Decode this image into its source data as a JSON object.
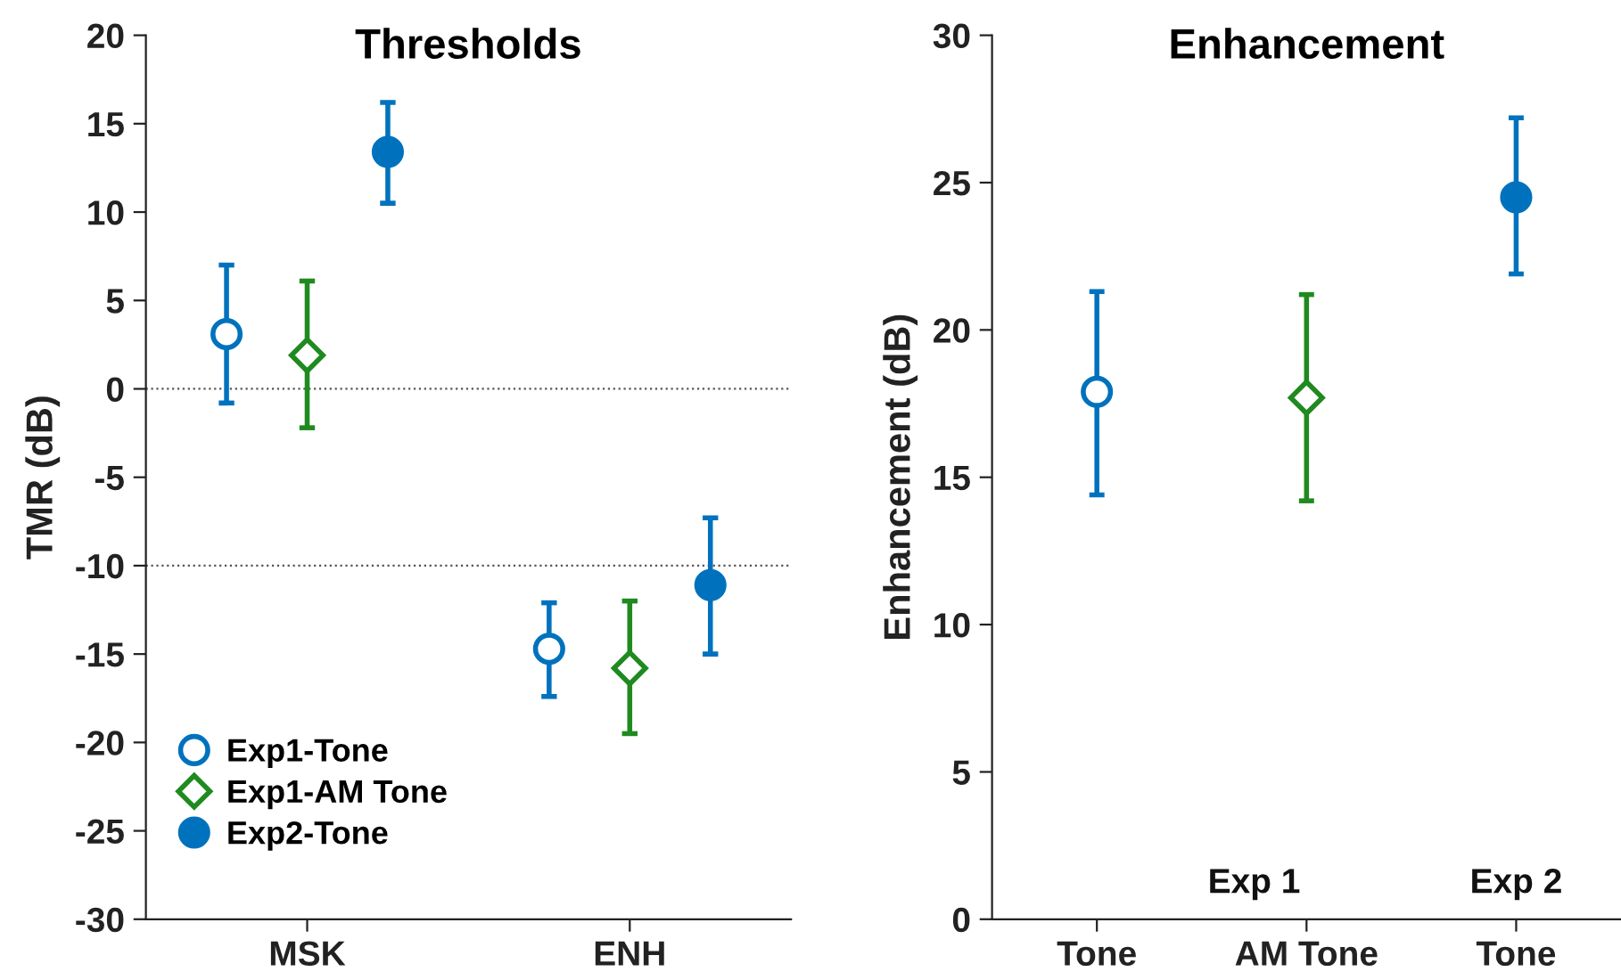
{
  "chart_data": [
    {
      "type": "scatter",
      "title": "Thresholds",
      "ylabel": "TMR (dB)",
      "categories": [
        "MSK",
        "ENH"
      ],
      "ylim": [
        -30,
        20
      ],
      "yticks": [
        -30,
        -25,
        -20,
        -15,
        -10,
        -5,
        0,
        5,
        10,
        15,
        20
      ],
      "grid": false,
      "legend": "bottom left",
      "series": [
        {
          "name": "Exp1-Tone",
          "color": "#0072bd",
          "marker": "circle",
          "values": [
            3.1,
            -14.7
          ],
          "errors": [
            [
              -0.8,
              7.0
            ],
            [
              -17.4,
              -12.1
            ]
          ]
        },
        {
          "name": "Exp1-AM Tone",
          "color": "#1f8a1f",
          "marker": "diamond",
          "values": [
            1.9,
            -15.8
          ],
          "errors": [
            [
              -2.2,
              6.1
            ],
            [
              -19.5,
              -12.0
            ]
          ]
        },
        {
          "name": "Exp2-Tone",
          "color": "#0072bd",
          "marker": "circle",
          "values": [
            13.4,
            -11.1
          ],
          "errors": [
            [
              10.5,
              16.2
            ],
            [
              -15.0,
              -7.3
            ]
          ]
        }
      ],
      "ref_lines": [
        {
          "axis": "y",
          "value": 0,
          "color": "#555555",
          "line_style": "dotted"
        },
        {
          "axis": "y",
          "value": -10,
          "color": "#555555",
          "line_style": "dotted"
        }
      ]
    },
    {
      "type": "scatter",
      "title": "Enhancement",
      "ylabel": "Enhancement (dB)",
      "categories": [
        "Tone",
        "AM Tone",
        "Tone"
      ],
      "ylim": [
        0,
        30
      ],
      "yticks": [
        0,
        5,
        10,
        15,
        20,
        25,
        30
      ],
      "grid": false,
      "annotations": [
        "Exp 1",
        "Exp 2"
      ],
      "series": [
        {
          "color": "#0072bd",
          "marker": "circle",
          "values": [
            17.9,
            null,
            null
          ],
          "errors": [
            [
              14.4,
              21.3
            ],
            null,
            null
          ]
        },
        {
          "color": "#1f8a1f",
          "marker": "diamond",
          "values": [
            null,
            17.7,
            null
          ],
          "errors": [
            null,
            [
              14.2,
              21.2
            ],
            null
          ]
        },
        {
          "color": "#0072bd",
          "marker": "circle",
          "values": [
            null,
            null,
            24.5
          ],
          "errors": [
            null,
            null,
            [
              21.9,
              27.2
            ]
          ]
        }
      ]
    }
  ]
}
